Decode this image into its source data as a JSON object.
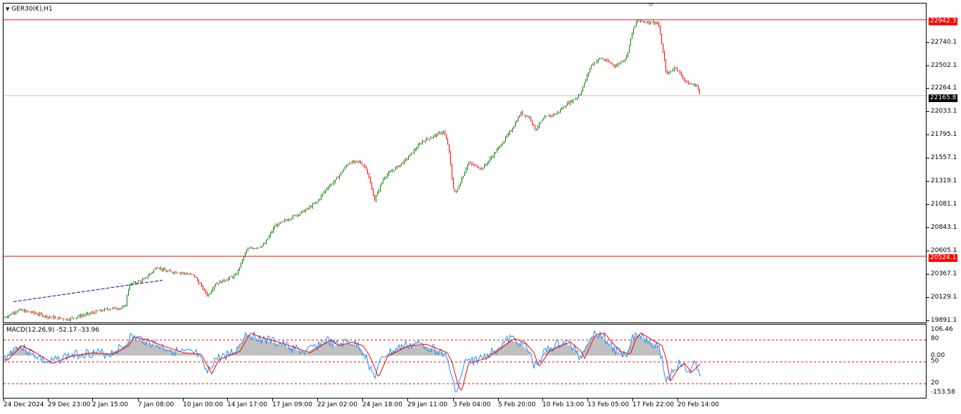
{
  "chart_title": "GER30(€),H1",
  "price_axis": [
    "22740.1",
    "22502.1",
    "22264.1",
    "22033.1",
    "21795.1",
    "21557.1",
    "21319.1",
    "21081.1",
    "20843.1",
    "20605.1",
    "20367.1",
    "20129.1",
    "19891.1"
  ],
  "price_tags": {
    "level_high": "22942.3",
    "level_low": "20524.1",
    "current": "22165.8"
  },
  "macd_title": "MACD(12,26,9) -52.17 -33.96",
  "macd_axis": [
    "106.46",
    "80",
    "50",
    "20",
    "-153.58"
  ],
  "macd_zero": "0.00",
  "time_axis": [
    "24 Dec 2024",
    "29 Dec 23:00",
    "2 Jan 15:00",
    "7 Jan 08:00",
    "10 Jan 00:00",
    "14 Jan 17:00",
    "17 Jan 09:00",
    "22 Jan 02:00",
    "24 Jan 18:00",
    "29 Jan 11:00",
    "3 Feb 04:00",
    "5 Feb 20:00",
    "10 Feb 13:00",
    "13 Feb 05:00",
    "17 Feb 22:00",
    "20 Feb 14:00"
  ],
  "colors": {
    "bull": "#008000",
    "bear": "#ff0000",
    "level_line": "#ff0000",
    "current_line": "#c0c0c0",
    "trendline": "#0000c0",
    "macd_line": "#1e90ff",
    "signal_line": "#ff0000",
    "histogram": "#c0c0c0"
  },
  "chart_data": {
    "type": "candlestick",
    "symbol": "GER30(€)",
    "timeframe": "H1",
    "ylim": [
      19891.1,
      22942.3
    ],
    "close_path": [
      [
        "24 Dec 2024",
        19895
      ],
      [
        "29 Dec 23:00",
        19960
      ],
      [
        "2 Jan 15:00",
        19990
      ],
      [
        "7 Jan 08:00",
        20360
      ],
      [
        "10 Jan 00:00",
        20250
      ],
      [
        "14 Jan 17:00",
        20560
      ],
      [
        "17 Jan 09:00",
        20970
      ],
      [
        "22 Jan 02:00",
        21350
      ],
      [
        "24 Jan 18:00",
        21320
      ],
      [
        "29 Jan 11:00",
        21720
      ],
      [
        "3 Feb 04:00",
        21300
      ],
      [
        "5 Feb 20:00",
        21720
      ],
      [
        "10 Feb 13:00",
        22060
      ],
      [
        "13 Feb 05:00",
        22500
      ],
      [
        "17 Feb 22:00",
        22900
      ],
      [
        "20 Feb 14:00",
        22250
      ]
    ],
    "horizontal_levels": [
      22942.3,
      20524.1
    ],
    "current_price": 22165.8,
    "macd": {
      "params": "12,26,9",
      "main": -52.17,
      "signal": -33.96,
      "levels": [
        80,
        50,
        20
      ],
      "ylim": [
        -153.58,
        106.46
      ]
    }
  }
}
